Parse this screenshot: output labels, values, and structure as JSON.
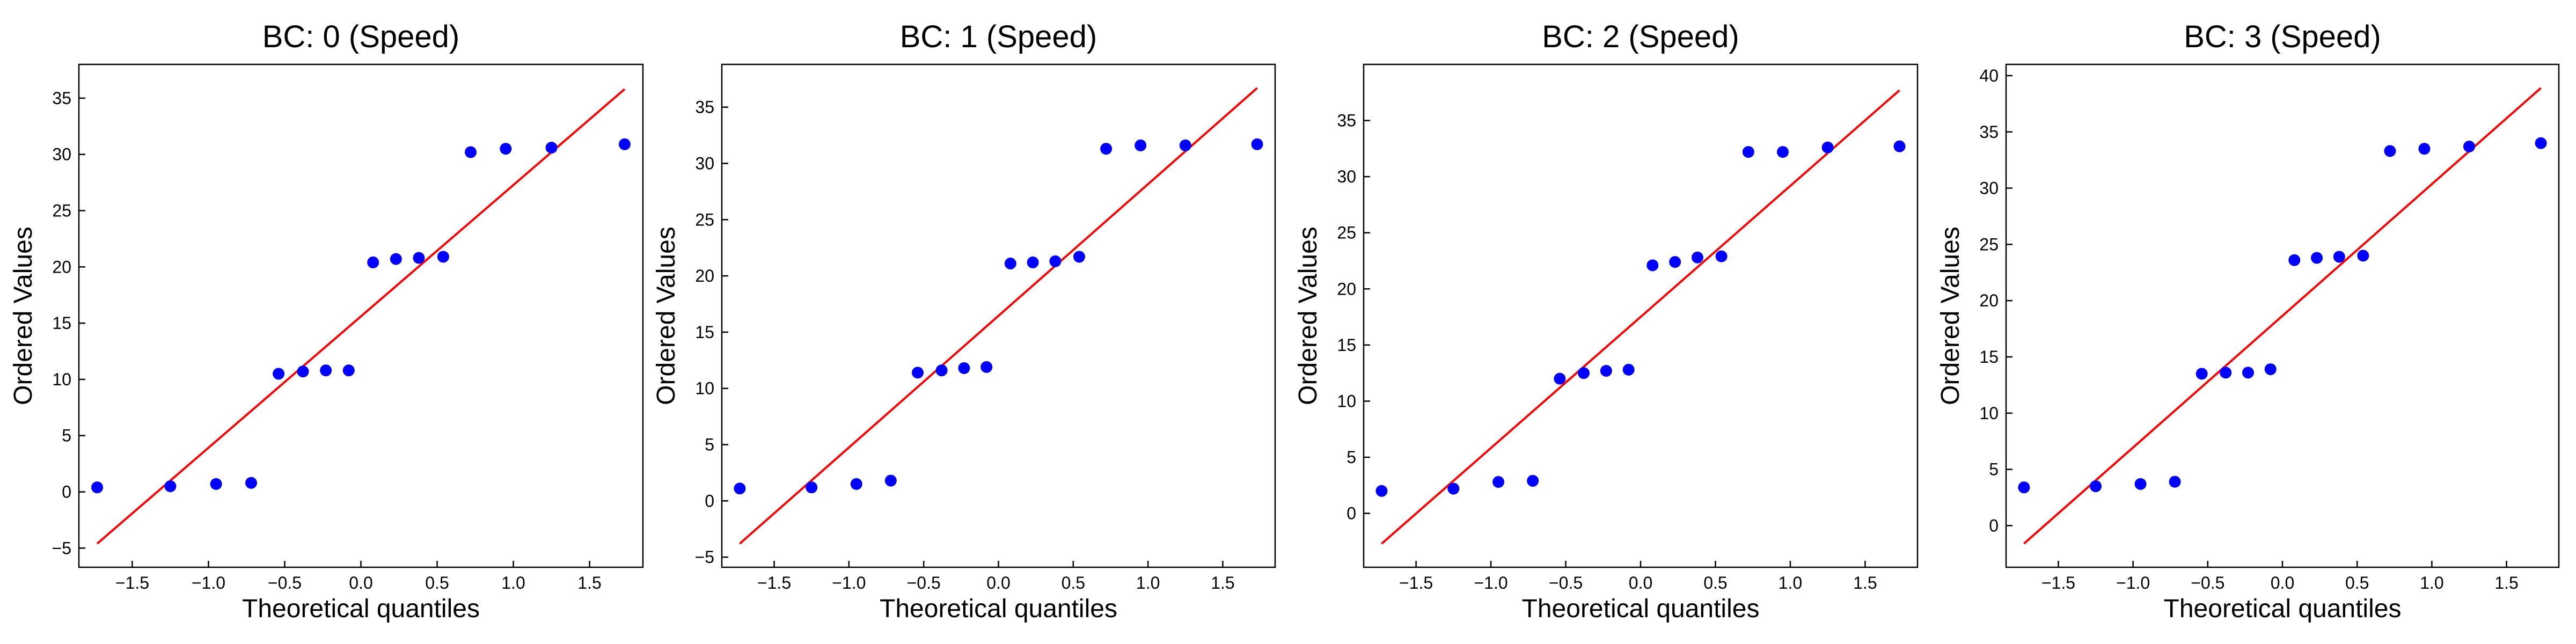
{
  "chart_data": [
    {
      "type": "scatter",
      "title": "BC: 0 (Speed)",
      "xlabel": "Theoretical quantiles",
      "ylabel": "Ordered Values",
      "xlim": [
        -1.85,
        1.85
      ],
      "ylim": [
        -6.7,
        38
      ],
      "xticks": [
        -1.5,
        -1.0,
        -0.5,
        0.0,
        0.5,
        1.0,
        1.5
      ],
      "xtick_labels": [
        "−1.5",
        "−1.0",
        "−0.5",
        "0.0",
        "0.5",
        "1.0",
        "1.5"
      ],
      "yticks": [
        -5,
        0,
        5,
        10,
        15,
        20,
        25,
        30,
        35
      ],
      "ytick_labels": [
        "−5",
        "0",
        "5",
        "10",
        "15",
        "20",
        "25",
        "30",
        "35"
      ],
      "points": {
        "x": [
          -1.73,
          -1.25,
          -0.95,
          -0.72,
          -0.54,
          -0.38,
          -0.23,
          -0.08,
          0.08,
          0.23,
          0.38,
          0.54,
          0.72,
          0.95,
          1.25,
          1.73
        ],
        "y": [
          0.4,
          0.5,
          0.7,
          0.8,
          10.5,
          10.7,
          10.8,
          10.8,
          20.4,
          20.7,
          20.8,
          20.9,
          30.2,
          30.5,
          30.6,
          30.9
        ]
      },
      "fit_line": {
        "x": [
          -1.73,
          1.73
        ],
        "y": [
          -4.6,
          35.8
        ]
      },
      "point_color": "#0000ff",
      "line_color": "#ff0000"
    },
    {
      "type": "scatter",
      "title": "BC: 1 (Speed)",
      "xlabel": "Theoretical quantiles",
      "ylabel": "Ordered Values",
      "xlim": [
        -1.85,
        1.85
      ],
      "ylim": [
        -5.9,
        38.8
      ],
      "xticks": [
        -1.5,
        -1.0,
        -0.5,
        0.0,
        0.5,
        1.0,
        1.5
      ],
      "xtick_labels": [
        "−1.5",
        "−1.0",
        "−0.5",
        "0.0",
        "0.5",
        "1.0",
        "1.5"
      ],
      "yticks": [
        -5,
        0,
        5,
        10,
        15,
        20,
        25,
        30,
        35
      ],
      "ytick_labels": [
        "−5",
        "0",
        "5",
        "10",
        "15",
        "20",
        "25",
        "30",
        "35"
      ],
      "points": {
        "x": [
          -1.73,
          -1.25,
          -0.95,
          -0.72,
          -0.54,
          -0.38,
          -0.23,
          -0.08,
          0.08,
          0.23,
          0.38,
          0.54,
          0.72,
          0.95,
          1.25,
          1.73
        ],
        "y": [
          1.1,
          1.2,
          1.5,
          1.8,
          11.4,
          11.6,
          11.8,
          11.9,
          21.1,
          21.2,
          21.3,
          21.7,
          31.3,
          31.6,
          31.6,
          31.7
        ]
      },
      "fit_line": {
        "x": [
          -1.73,
          1.73
        ],
        "y": [
          -3.8,
          36.7
        ]
      },
      "point_color": "#0000ff",
      "line_color": "#ff0000"
    },
    {
      "type": "scatter",
      "title": "BC: 2 (Speed)",
      "xlabel": "Theoretical quantiles",
      "ylabel": "Ordered Values",
      "xlim": [
        -1.85,
        1.85
      ],
      "ylim": [
        -4.8,
        40
      ],
      "xticks": [
        -1.5,
        -1.0,
        -0.5,
        0.0,
        0.5,
        1.0,
        1.5
      ],
      "xtick_labels": [
        "−1.5",
        "−1.0",
        "−0.5",
        "0.0",
        "0.5",
        "1.0",
        "1.5"
      ],
      "yticks": [
        0,
        5,
        10,
        15,
        20,
        25,
        30,
        35
      ],
      "ytick_labels": [
        "0",
        "5",
        "10",
        "15",
        "20",
        "25",
        "30",
        "35"
      ],
      "points": {
        "x": [
          -1.73,
          -1.25,
          -0.95,
          -0.72,
          -0.54,
          -0.38,
          -0.23,
          -0.08,
          0.08,
          0.23,
          0.38,
          0.54,
          0.72,
          0.95,
          1.25,
          1.73
        ],
        "y": [
          2.0,
          2.2,
          2.8,
          2.9,
          12.0,
          12.5,
          12.7,
          12.8,
          22.1,
          22.4,
          22.8,
          22.9,
          32.2,
          32.2,
          32.6,
          32.7
        ]
      },
      "fit_line": {
        "x": [
          -1.73,
          1.73
        ],
        "y": [
          -2.7,
          37.7
        ]
      },
      "point_color": "#0000ff",
      "line_color": "#ff0000"
    },
    {
      "type": "scatter",
      "title": "BC: 3 (Speed)",
      "xlabel": "Theoretical quantiles",
      "ylabel": "Ordered Values",
      "xlim": [
        -1.85,
        1.85
      ],
      "ylim": [
        -3.7,
        41
      ],
      "xticks": [
        -1.5,
        -1.0,
        -0.5,
        0.0,
        0.5,
        1.0,
        1.5
      ],
      "xtick_labels": [
        "−1.5",
        "−1.0",
        "−0.5",
        "0.0",
        "0.5",
        "1.0",
        "1.5"
      ],
      "yticks": [
        0,
        5,
        10,
        15,
        20,
        25,
        30,
        35,
        40
      ],
      "ytick_labels": [
        "0",
        "5",
        "10",
        "15",
        "20",
        "25",
        "30",
        "35",
        "40"
      ],
      "points": {
        "x": [
          -1.73,
          -1.25,
          -0.95,
          -0.72,
          -0.54,
          -0.38,
          -0.23,
          -0.08,
          0.08,
          0.23,
          0.38,
          0.54,
          0.72,
          0.95,
          1.25,
          1.73
        ],
        "y": [
          3.4,
          3.5,
          3.7,
          3.9,
          13.5,
          13.6,
          13.6,
          13.9,
          23.6,
          23.8,
          23.9,
          24.0,
          33.3,
          33.5,
          33.7,
          34.0
        ]
      },
      "fit_line": {
        "x": [
          -1.73,
          1.73
        ],
        "y": [
          -1.6,
          38.9
        ]
      },
      "point_color": "#0000ff",
      "line_color": "#ff0000"
    }
  ]
}
